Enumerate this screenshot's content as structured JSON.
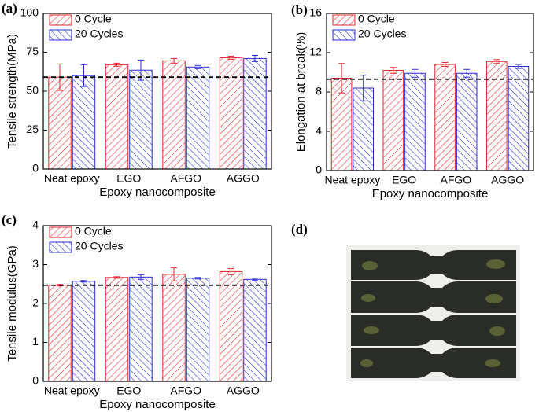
{
  "chart_data": [
    {
      "type": "bar",
      "panel_label": "(a)",
      "xlabel": "Epoxy nanocomposite",
      "ylabel": "Tensile strength(MPa)",
      "categories": [
        "Neat epoxy",
        "EGO",
        "AFGO",
        "AGGO"
      ],
      "series": [
        {
          "name": "0 Cycle",
          "color": "#e8262b",
          "values": [
            59,
            67,
            69.5,
            71.5
          ],
          "errors": [
            8.5,
            1,
            1.5,
            1
          ]
        },
        {
          "name": "20 Cycles",
          "color": "#2b2bd6",
          "values": [
            60,
            63.5,
            65.5,
            71
          ],
          "errors": [
            7,
            6.5,
            1,
            2
          ]
        }
      ],
      "ylim": [
        0,
        100
      ],
      "yticks": [
        0,
        25,
        50,
        75,
        100
      ],
      "hline": 59,
      "legend": "upper left"
    },
    {
      "type": "bar",
      "panel_label": "(b)",
      "xlabel": "Epoxy nanocomposite",
      "ylabel": "Elongation at break(%)",
      "categories": [
        "Neat epoxy",
        "EGO",
        "AFGO",
        "AGGO"
      ],
      "series": [
        {
          "name": "0 Cycle",
          "color": "#e8262b",
          "values": [
            9.4,
            10.2,
            10.8,
            11.1
          ],
          "errors": [
            1.5,
            0.3,
            0.2,
            0.2
          ]
        },
        {
          "name": "20 Cycles",
          "color": "#2b2bd6",
          "values": [
            8.4,
            9.9,
            9.9,
            10.6
          ],
          "errors": [
            1.3,
            0.4,
            0.4,
            0.2
          ]
        }
      ],
      "ylim": [
        0,
        16
      ],
      "yticks": [
        0,
        4,
        8,
        12,
        16
      ],
      "hline": 9.3,
      "legend": "upper left"
    },
    {
      "type": "bar",
      "panel_label": "(c)",
      "xlabel": "Epoxy nanocomposite",
      "ylabel": "Tensile modulus(GPa)",
      "categories": [
        "Neat epoxy",
        "EGO",
        "AFGO",
        "AGGO"
      ],
      "series": [
        {
          "name": "0 Cycle",
          "color": "#e8262b",
          "values": [
            2.47,
            2.67,
            2.75,
            2.82
          ],
          "errors": [
            0.02,
            0.02,
            0.17,
            0.08
          ]
        },
        {
          "name": "20 Cycles",
          "color": "#2b2bd6",
          "values": [
            2.57,
            2.68,
            2.65,
            2.62
          ],
          "errors": [
            0.02,
            0.06,
            0.02,
            0.03
          ]
        }
      ],
      "ylim": [
        0,
        4
      ],
      "yticks": [
        0,
        1,
        2,
        3,
        4
      ],
      "hline": 2.47,
      "legend": "upper left"
    }
  ],
  "photo": {
    "panel_label": "(d)"
  }
}
